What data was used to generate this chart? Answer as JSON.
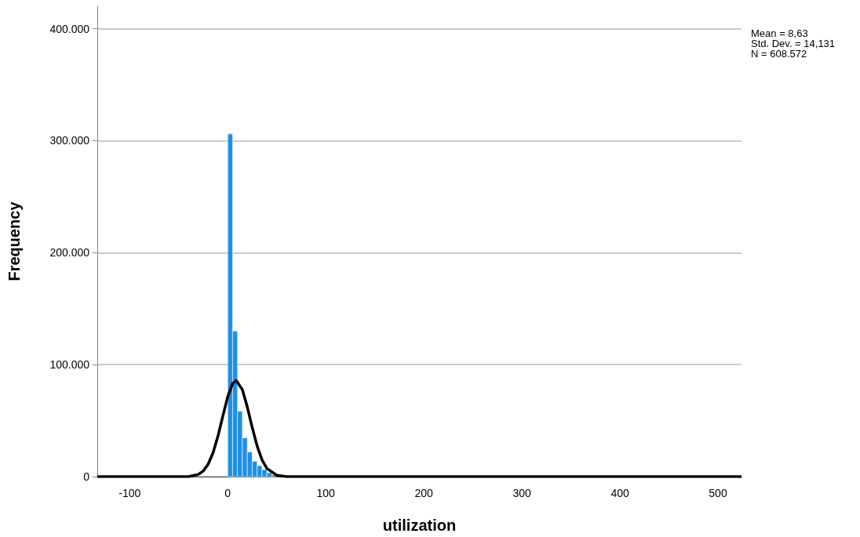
{
  "chart_data": {
    "type": "histogram",
    "xlabel": "utilization",
    "ylabel": "Frequency",
    "bins": [
      0,
      5,
      10,
      15,
      20,
      25,
      30,
      35,
      40,
      45,
      50,
      55
    ],
    "values": [
      306000,
      130000,
      58500,
      34600,
      22100,
      13700,
      9800,
      6300,
      3500,
      1500,
      null
    ],
    "color": "#1e90e6",
    "series": [
      {
        "type": "line",
        "color": "#000000",
        "x": [
          -133,
          -60,
          -40,
          -30,
          -25,
          -20,
          -15,
          -10,
          -5,
          0,
          5,
          8.63,
          15,
          20,
          25,
          30,
          35,
          40,
          50,
          60,
          80,
          524
        ],
        "values": [
          0,
          0,
          0,
          2000,
          5000,
          11000,
          21200,
          36000,
          54000,
          71300,
          83100,
          85900,
          77600,
          62100,
          43900,
          27400,
          15000,
          7300,
          1200,
          0,
          0,
          0
        ]
      }
    ],
    "xlim": [
      -133,
      524
    ],
    "xticks": [
      -100,
      0,
      100,
      200,
      300,
      400,
      500
    ],
    "ylim": [
      0,
      420000
    ],
    "yticks": [
      {
        "value": 0,
        "label": "0"
      },
      {
        "value": 100000,
        "label": "100.000"
      },
      {
        "value": 200000,
        "label": "200.000"
      },
      {
        "value": 300000,
        "label": "300.000"
      },
      {
        "value": 400000,
        "label": "400.000"
      }
    ],
    "grid": "y",
    "annotations": [
      "Mean = 8,63",
      "Std. Dev. = 14,131",
      "N = 608.572"
    ]
  }
}
